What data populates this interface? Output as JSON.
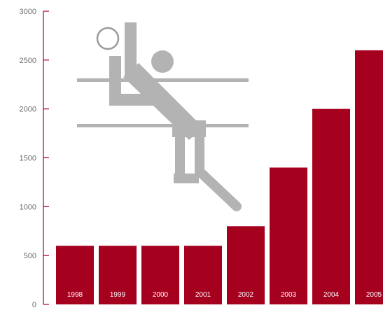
{
  "chart_data": {
    "type": "bar",
    "categories": [
      "1998",
      "1999",
      "2000",
      "2001",
      "2002",
      "2003",
      "2004",
      "2005"
    ],
    "values": [
      600,
      600,
      600,
      600,
      800,
      1400,
      2000,
      2600
    ],
    "title": "",
    "xlabel": "",
    "ylabel": "",
    "ylim": [
      0,
      3000
    ],
    "yticks": [
      "0",
      "500",
      "1000",
      "1500",
      "2000",
      "2500",
      "3000"
    ],
    "grid": false,
    "legend": "none"
  },
  "colors": {
    "bar": "#a5001e",
    "axis": "#a5001e",
    "tick_text": "#6e6e6e",
    "category_text": "#ffffff",
    "pictogram": "#b3b3b3"
  },
  "icons": {
    "pictogram": "volleyball-player-icon"
  }
}
